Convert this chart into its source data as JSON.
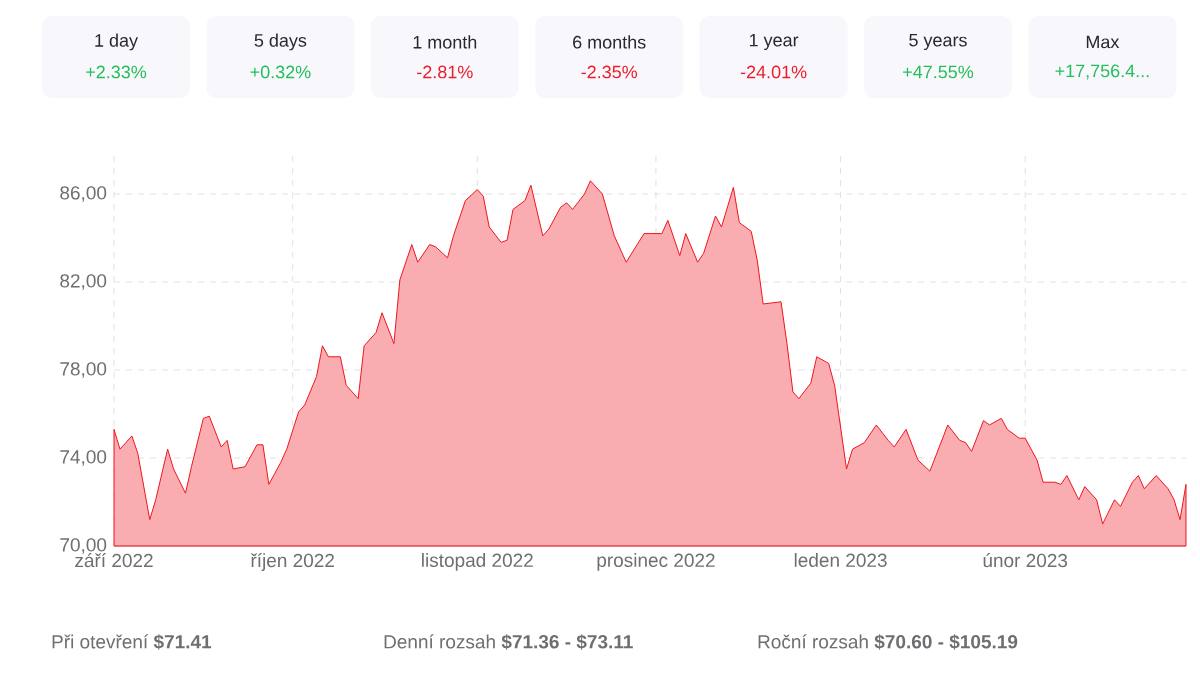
{
  "chart_data": {
    "type": "area",
    "color": "#f0141e",
    "grid": true,
    "x": [
      "2022-09-01",
      "2022-09-02",
      "2022-09-04",
      "2022-09-05",
      "2022-09-07",
      "2022-09-08",
      "2022-09-10",
      "2022-09-11",
      "2022-09-13",
      "2022-09-14",
      "2022-09-16",
      "2022-09-17",
      "2022-09-19",
      "2022-09-20",
      "2022-09-21",
      "2022-09-23",
      "2022-09-25",
      "2022-09-26",
      "2022-09-27",
      "2022-09-29",
      "2022-09-30",
      "2022-10-02",
      "2022-10-03",
      "2022-10-05",
      "2022-10-06",
      "2022-10-07",
      "2022-10-09",
      "2022-10-10",
      "2022-10-12",
      "2022-10-13",
      "2022-10-15",
      "2022-10-16",
      "2022-10-18",
      "2022-10-19",
      "2022-10-21",
      "2022-10-22",
      "2022-10-24",
      "2022-10-25",
      "2022-10-27",
      "2022-10-28",
      "2022-10-30",
      "2022-11-01",
      "2022-11-02",
      "2022-11-03",
      "2022-11-05",
      "2022-11-06",
      "2022-11-07",
      "2022-11-09",
      "2022-11-10",
      "2022-11-12",
      "2022-11-13",
      "2022-11-15",
      "2022-11-16",
      "2022-11-17",
      "2022-11-19",
      "2022-11-20",
      "2022-11-22",
      "2022-11-24",
      "2022-11-26",
      "2022-11-29",
      "2022-12-02",
      "2022-12-03",
      "2022-12-05",
      "2022-12-06",
      "2022-12-08",
      "2022-12-09",
      "2022-12-11",
      "2022-12-12",
      "2022-12-14",
      "2022-12-15",
      "2022-12-17",
      "2022-12-18",
      "2022-12-19",
      "2022-12-22",
      "2022-12-23",
      "2022-12-24",
      "2022-12-25",
      "2022-12-27",
      "2022-12-28",
      "2022-12-30",
      "2022-12-31",
      "2023-01-02",
      "2023-01-03",
      "2023-01-05",
      "2023-01-07",
      "2023-01-09",
      "2023-01-10",
      "2023-01-12",
      "2023-01-14",
      "2023-01-16",
      "2023-01-19",
      "2023-01-21",
      "2023-01-22",
      "2023-01-23",
      "2023-01-25",
      "2023-01-26",
      "2023-01-28",
      "2023-01-29",
      "2023-01-31",
      "2023-02-01",
      "2023-02-03",
      "2023-02-04",
      "2023-02-06",
      "2023-02-07",
      "2023-02-08",
      "2023-02-10",
      "2023-02-11",
      "2023-02-13",
      "2023-02-14",
      "2023-02-16",
      "2023-02-17",
      "2023-02-19",
      "2023-02-20",
      "2023-02-21",
      "2023-02-23",
      "2023-02-25",
      "2023-02-26",
      "2023-02-27",
      "2023-02-28"
    ],
    "values": [
      75.3,
      74.4,
      75.0,
      74.2,
      71.2,
      72.1,
      74.4,
      73.5,
      72.4,
      73.6,
      75.8,
      75.9,
      74.5,
      74.8,
      73.5,
      73.6,
      74.6,
      74.6,
      72.8,
      73.8,
      74.4,
      76.1,
      76.4,
      77.7,
      79.1,
      78.6,
      78.6,
      77.3,
      76.7,
      79.1,
      79.7,
      80.6,
      79.2,
      82.1,
      83.7,
      82.9,
      83.7,
      83.6,
      83.1,
      84.1,
      85.7,
      86.2,
      85.9,
      84.5,
      83.8,
      83.9,
      85.3,
      85.7,
      86.4,
      84.1,
      84.4,
      85.4,
      85.6,
      85.3,
      86.0,
      86.6,
      86.0,
      84.1,
      82.9,
      84.2,
      84.2,
      84.8,
      83.2,
      84.2,
      82.9,
      83.3,
      85.0,
      84.5,
      86.3,
      84.7,
      84.3,
      83.0,
      81.0,
      81.1,
      79.2,
      77.0,
      76.7,
      77.4,
      78.6,
      78.3,
      77.3,
      73.5,
      74.4,
      74.7,
      75.5,
      74.8,
      74.5,
      75.3,
      73.9,
      73.4,
      75.5,
      74.8,
      74.7,
      74.3,
      75.7,
      75.5,
      75.8,
      75.3,
      74.9,
      74.9,
      73.9,
      72.9,
      72.9,
      72.8,
      73.2,
      72.1,
      72.7,
      72.1,
      71.0,
      72.1,
      71.8,
      72.9,
      73.2,
      72.6,
      73.2,
      72.6,
      72.1,
      71.2,
      72.8
    ],
    "xlim": [
      "2022-09-01",
      "2023-02-28"
    ],
    "ylim": [
      70,
      88
    ],
    "xticks": [
      {
        "value": "2022-09-01",
        "label": "září 2022"
      },
      {
        "value": "2022-10-01",
        "label": "říjen 2022"
      },
      {
        "value": "2022-11-01",
        "label": "listopad 2022"
      },
      {
        "value": "2022-12-01",
        "label": "prosinec 2022"
      },
      {
        "value": "2023-01-01",
        "label": "leden 2023"
      },
      {
        "value": "2023-02-01",
        "label": "únor 2023"
      }
    ],
    "yticks": [
      {
        "value": 70,
        "label": "70,00"
      },
      {
        "value": 74,
        "label": "74,00"
      },
      {
        "value": 78,
        "label": "78,00"
      },
      {
        "value": 82,
        "label": "82,00"
      },
      {
        "value": 86,
        "label": "86,00"
      }
    ],
    "annotations": [
      "1 day",
      "+2.33%",
      "5 days",
      "+0.32%",
      "1 month",
      "-2.81%",
      "6 months",
      "-2.35%",
      "1 year",
      "-24.01%",
      "5 years",
      "+47.55%",
      "Max",
      "+17,756.4...",
      "Při otevření **$71.41**",
      "Denní rozsah **$71.36 - $73.11**",
      "Roční rozsah **$70.60 - $105.19**"
    ]
  }
}
